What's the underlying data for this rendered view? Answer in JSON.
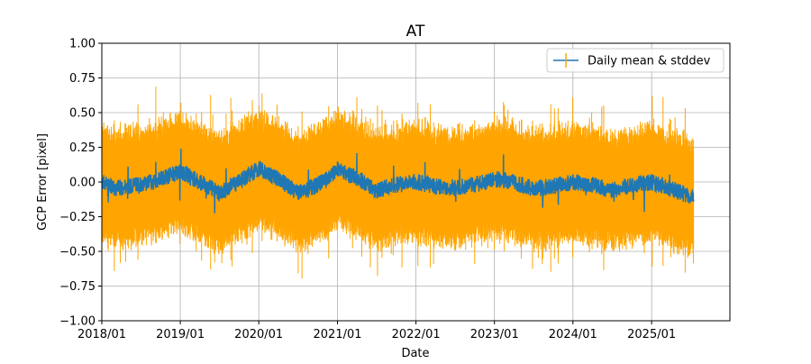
{
  "chart_data": {
    "type": "line",
    "title": "AT",
    "xlabel": "Date",
    "ylabel": "GCP Error [pixel]",
    "x_range": [
      "2018-01-01",
      "2025-12-31"
    ],
    "xlim": [
      "2018-01-01",
      "2026-01-01"
    ],
    "x_scale": "date",
    "x_ticks": [
      "2018/01",
      "2019/01",
      "2020/01",
      "2021/01",
      "2022/01",
      "2023/01",
      "2024/01",
      "2025/01"
    ],
    "ylim": [
      -1.0,
      1.0
    ],
    "y_ticks": [
      "−1.00",
      "−0.75",
      "−0.50",
      "−0.25",
      "0.00",
      "0.25",
      "0.50",
      "0.75",
      "1.00"
    ],
    "grid": true,
    "legend_position": "top-right",
    "series": [
      {
        "name": "Daily mean & stddev",
        "color": "#1f77b4",
        "errorbar_color": "#ffa500",
        "x_start": "2018-01-01",
        "x_end": "2025-07-15",
        "mean_approx": [
          [
            "2018-01",
            0.0
          ],
          [
            "2018-03",
            -0.05
          ],
          [
            "2018-06",
            -0.02
          ],
          [
            "2018-09",
            0.0
          ],
          [
            "2019-01",
            0.08
          ],
          [
            "2019-04",
            0.0
          ],
          [
            "2019-07",
            -0.08
          ],
          [
            "2019-10",
            0.0
          ],
          [
            "2020-01",
            0.1
          ],
          [
            "2020-04",
            0.02
          ],
          [
            "2020-07",
            -0.08
          ],
          [
            "2020-10",
            -0.02
          ],
          [
            "2021-01",
            0.09
          ],
          [
            "2021-04",
            0.03
          ],
          [
            "2021-07",
            -0.06
          ],
          [
            "2021-10",
            -0.02
          ],
          [
            "2022-01",
            0.0
          ],
          [
            "2022-04",
            -0.03
          ],
          [
            "2022-07",
            -0.04
          ],
          [
            "2022-10",
            -0.02
          ],
          [
            "2023-01",
            0.02
          ],
          [
            "2023-04",
            0.0
          ],
          [
            "2023-07",
            -0.05
          ],
          [
            "2023-10",
            -0.03
          ],
          [
            "2024-01",
            0.0
          ],
          [
            "2024-04",
            -0.02
          ],
          [
            "2024-07",
            -0.06
          ],
          [
            "2024-10",
            -0.02
          ],
          [
            "2025-01",
            0.0
          ],
          [
            "2025-04",
            -0.05
          ],
          [
            "2025-07",
            -0.1
          ]
        ],
        "stddev_approx": 0.35
      }
    ]
  }
}
